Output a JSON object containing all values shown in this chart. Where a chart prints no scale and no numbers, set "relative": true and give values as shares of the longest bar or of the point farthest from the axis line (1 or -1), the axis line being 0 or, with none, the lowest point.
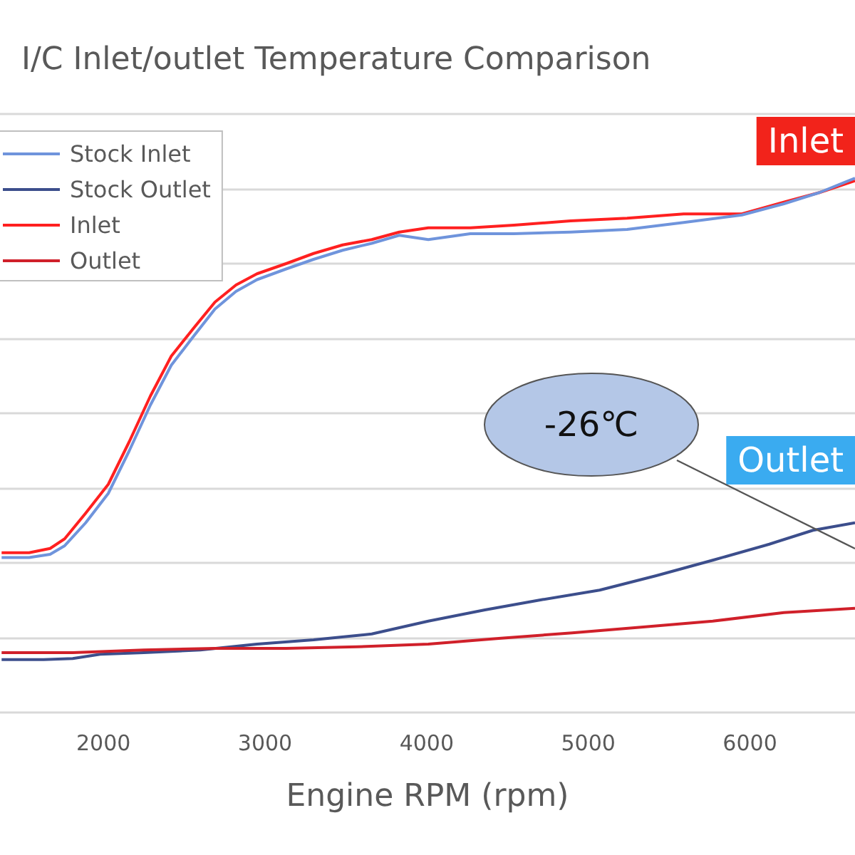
{
  "chart_data": {
    "type": "line",
    "title": "I/C Inlet/outlet Temperature Comparison",
    "xlabel": "Engine RPM (rpm)",
    "relative": true,
    "xlim": [
      1360,
      6650
    ],
    "xticks": [
      2000,
      3000,
      4000,
      5000,
      6000
    ],
    "grid": "y",
    "legend": "top left",
    "marker": "none",
    "line_style": "solid",
    "annotations": [
      "Inlet",
      "Outlet",
      "-26℃"
    ],
    "series": [
      {
        "name": "Stock Inlet",
        "color": "#6f94dc",
        "x": [
          1370,
          1540,
          1670,
          1760,
          1890,
          2030,
          2160,
          2290,
          2420,
          2560,
          2690,
          2820,
          2950,
          3130,
          3300,
          3480,
          3660,
          3830,
          4010,
          4270,
          4540,
          4890,
          5240,
          5590,
          5950,
          6210,
          6430,
          6650
        ],
        "values": [
          0.29,
          0.29,
          0.296,
          0.312,
          0.355,
          0.41,
          0.49,
          0.575,
          0.65,
          0.705,
          0.755,
          0.788,
          0.81,
          0.83,
          0.848,
          0.865,
          0.878,
          0.893,
          0.885,
          0.896,
          0.896,
          0.899,
          0.904,
          0.917,
          0.931,
          0.952,
          0.973,
          1
        ]
      },
      {
        "name": "Stock Outlet",
        "color": "#3c4e8c",
        "x": [
          1370,
          1630,
          1810,
          1980,
          2250,
          2600,
          2950,
          3300,
          3660,
          4010,
          4360,
          4710,
          5070,
          5420,
          5770,
          6120,
          6390,
          6650
        ],
        "values": [
          0.099,
          0.099,
          0.101,
          0.109,
          0.112,
          0.117,
          0.128,
          0.136,
          0.147,
          0.171,
          0.192,
          0.211,
          0.229,
          0.256,
          0.285,
          0.315,
          0.341,
          0.355
        ]
      },
      {
        "name": "Inlet",
        "color": "#ff2020",
        "x": [
          1370,
          1540,
          1670,
          1760,
          1890,
          2030,
          2160,
          2290,
          2420,
          2560,
          2690,
          2820,
          2950,
          3130,
          3300,
          3480,
          3660,
          3830,
          4010,
          4270,
          4540,
          4890,
          5240,
          5590,
          5950,
          6210,
          6430,
          6650
        ],
        "values": [
          0.299,
          0.299,
          0.307,
          0.325,
          0.373,
          0.427,
          0.507,
          0.592,
          0.667,
          0.72,
          0.768,
          0.8,
          0.821,
          0.84,
          0.859,
          0.875,
          0.885,
          0.899,
          0.907,
          0.907,
          0.912,
          0.92,
          0.925,
          0.933,
          0.933,
          0.955,
          0.973,
          0.995
        ]
      },
      {
        "name": "Outlet",
        "color": "#d0202a",
        "x": [
          1370,
          1810,
          2250,
          2690,
          3130,
          3570,
          4010,
          4460,
          4900,
          5340,
          5770,
          6210,
          6650
        ],
        "values": [
          0.112,
          0.112,
          0.117,
          0.12,
          0.12,
          0.123,
          0.128,
          0.139,
          0.149,
          0.16,
          0.171,
          0.187,
          0.195
        ]
      }
    ]
  }
}
